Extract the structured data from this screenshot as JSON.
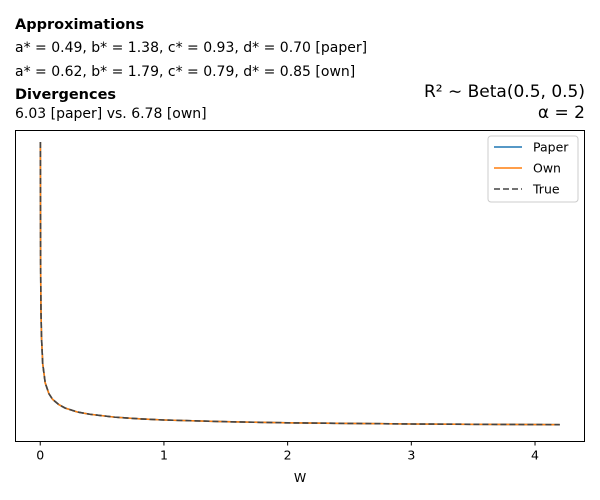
{
  "annotations": {
    "approx_heading": "Approximations",
    "approx_paper_line": "a* = 0.49, b* = 1.38, c* = 0.93, d* = 0.70 [paper]",
    "approx_own_line": "a* = 0.62, b* = 1.79, c* = 0.79, d* = 0.85 [own]",
    "div_heading": "Divergences",
    "div_values": "6.03 [paper] vs. 6.78 [own]",
    "prior_line": "R² ∼ Beta(0.5, 0.5)",
    "alpha_line": "α = 2"
  },
  "chart_data": {
    "type": "line",
    "xlabel": "W",
    "ylabel": "",
    "xlim": [
      -0.2,
      4.4
    ],
    "xticks": [
      0,
      1,
      2,
      3,
      4
    ],
    "yticks_visible": false,
    "grid": false,
    "legend_position": "top-right",
    "series": [
      {
        "name": "Paper",
        "color": "#1f77b4",
        "style": "solid",
        "x": [
          0.001,
          0.003,
          0.006,
          0.01,
          0.02,
          0.04,
          0.07,
          0.1,
          0.15,
          0.2,
          0.3,
          0.4,
          0.6,
          0.8,
          1.0,
          1.5,
          2.0,
          2.5,
          3.0,
          3.5,
          4.0,
          4.2
        ],
        "y": [
          1.0,
          0.58,
          0.41,
          0.32,
          0.225,
          0.158,
          0.12,
          0.1,
          0.082,
          0.07,
          0.056,
          0.048,
          0.038,
          0.032,
          0.028,
          0.022,
          0.018,
          0.016,
          0.014,
          0.013,
          0.012,
          0.0115
        ]
      },
      {
        "name": "Own",
        "color": "#ff7f0e",
        "style": "solid",
        "x": [
          0.001,
          0.003,
          0.006,
          0.01,
          0.02,
          0.04,
          0.07,
          0.1,
          0.15,
          0.2,
          0.3,
          0.4,
          0.6,
          0.8,
          1.0,
          1.5,
          2.0,
          2.5,
          3.0,
          3.5,
          4.0,
          4.2
        ],
        "y": [
          1.0,
          0.58,
          0.41,
          0.32,
          0.225,
          0.158,
          0.12,
          0.1,
          0.082,
          0.07,
          0.056,
          0.048,
          0.038,
          0.032,
          0.028,
          0.022,
          0.018,
          0.016,
          0.014,
          0.013,
          0.012,
          0.0115
        ]
      },
      {
        "name": "True",
        "color": "#444444",
        "style": "dashed",
        "x": [
          0.001,
          0.003,
          0.006,
          0.01,
          0.02,
          0.04,
          0.07,
          0.1,
          0.15,
          0.2,
          0.3,
          0.4,
          0.6,
          0.8,
          1.0,
          1.5,
          2.0,
          2.5,
          3.0,
          3.5,
          4.0,
          4.2
        ],
        "y": [
          1.0,
          0.58,
          0.41,
          0.32,
          0.225,
          0.158,
          0.12,
          0.1,
          0.082,
          0.07,
          0.056,
          0.048,
          0.038,
          0.032,
          0.028,
          0.022,
          0.018,
          0.016,
          0.014,
          0.013,
          0.012,
          0.0115
        ]
      }
    ]
  }
}
